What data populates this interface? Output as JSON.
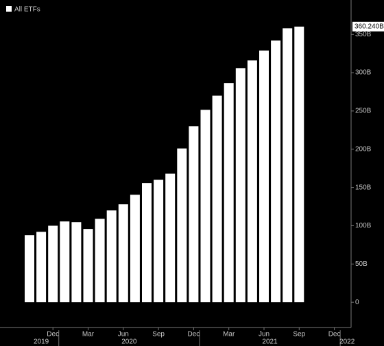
{
  "chart_data": {
    "type": "bar",
    "categories": [
      null,
      null,
      "Dec",
      null,
      null,
      "Mar",
      null,
      null,
      "Jun",
      null,
      null,
      "Sep",
      null,
      null,
      "Dec",
      null,
      null,
      "Mar",
      null,
      null,
      "Jun",
      null,
      null,
      "Sep",
      null,
      null,
      "Dec"
    ],
    "series": [
      {
        "name": "All ETFs",
        "color": "#ffffff",
        "values": [
          87.7,
          92,
          100,
          105.6,
          104.7,
          95.8,
          109,
          120,
          128,
          140.5,
          155.8,
          160,
          168,
          201,
          230,
          251.5,
          270,
          286.5,
          306,
          316,
          329,
          342,
          358,
          360.24,
          null,
          null,
          null
        ],
        "value_labels": [
          null,
          null,
          null,
          null,
          null,
          null,
          null,
          null,
          null,
          null,
          null,
          null,
          null,
          null,
          null,
          null,
          null,
          null,
          null,
          null,
          null,
          null,
          null,
          "360.240B",
          null,
          null,
          null
        ]
      }
    ],
    "groups": [
      {
        "label": "2019",
        "start": 0
      },
      {
        "label": "2020",
        "start": 3
      },
      {
        "label": "2021",
        "start": 15
      },
      {
        "label": "2022",
        "start": 27
      }
    ],
    "ylim": [
      -33,
      395
    ],
    "yticks": [
      0,
      {
        "value": 50,
        "label": "50B"
      },
      {
        "value": 100,
        "label": "100B"
      },
      {
        "value": 150,
        "label": "150B"
      },
      {
        "value": 200,
        "label": "200B"
      },
      {
        "value": 250,
        "label": "250B"
      },
      {
        "value": 300,
        "label": "300B"
      },
      {
        "value": 350,
        "label": "350B"
      }
    ],
    "legend": "top-left"
  }
}
